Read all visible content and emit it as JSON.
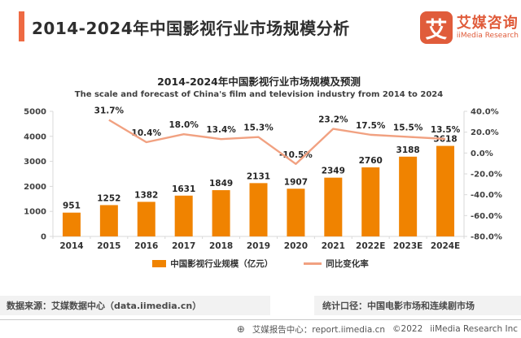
{
  "header": {
    "title": "2014-2024年中国影视行业市场规模分析",
    "logo": {
      "badge": "艾",
      "name_cn": "艾媒咨询",
      "name_en": "iiMedia Research"
    }
  },
  "chart_data": {
    "type": "bar",
    "title": "2014-2024年中国影视行业市场规模及预测",
    "subtitle": "The scale and forecast of China's film and television industry from 2014 to 2024",
    "categories": [
      "2014",
      "2015",
      "2016",
      "2017",
      "2018",
      "2019",
      "2020",
      "2021",
      "2022E",
      "2023E",
      "2024E"
    ],
    "series": [
      {
        "name": "中国影视行业规模（亿元）",
        "type": "bar",
        "color": "#F08300",
        "values": [
          951,
          1252,
          1382,
          1631,
          1849,
          2131,
          1907,
          2349,
          2760,
          3188,
          3618
        ]
      },
      {
        "name": "同比变化率",
        "type": "line",
        "color": "#F1A181",
        "values": [
          null,
          31.7,
          10.4,
          18.0,
          13.4,
          15.3,
          -10.5,
          23.2,
          17.5,
          15.5,
          13.5
        ],
        "point_labels": [
          "",
          "31.7%",
          "10.4%",
          "18.0%",
          "13.4%",
          "15.3%",
          "-10.5%",
          "23.2%",
          "17.5%",
          "15.5%",
          "13.5%"
        ]
      }
    ],
    "left_axis": {
      "min": 0,
      "max": 5000,
      "ticks": [
        {
          "value": 0,
          "label": "0"
        },
        {
          "value": 1000,
          "label": "1000"
        },
        {
          "value": 2000,
          "label": "2000"
        },
        {
          "value": 3000,
          "label": "3000"
        },
        {
          "value": 4000,
          "label": "4000"
        },
        {
          "value": 5000,
          "label": "5000"
        }
      ]
    },
    "right_axis": {
      "min": -80,
      "max": 40,
      "ticks": [
        {
          "value": 40,
          "label": "40.0%"
        },
        {
          "value": 20,
          "label": "20.0%"
        },
        {
          "value": 0,
          "label": "0.0%"
        },
        {
          "value": -20,
          "label": "-20.0%"
        },
        {
          "value": -40,
          "label": "-40.0%"
        },
        {
          "value": -60,
          "label": "-60.0%"
        },
        {
          "value": -80,
          "label": "-80.0%"
        }
      ]
    },
    "legend": [
      {
        "label": "中国影视行业规模（亿元）",
        "swatch": "bar",
        "color": "#F08300"
      },
      {
        "label": "同比变化率",
        "swatch": "line",
        "color": "#F1A181"
      }
    ],
    "grid": false,
    "legend_position": "bottom"
  },
  "source_bar": {
    "left": "数据来源：艾媒数据中心（data.iimedia.cn）",
    "right": "统计口径：中国电影市场和连续剧市场"
  },
  "footer": {
    "globe_icon": "⊕",
    "report_center": "艾媒报告中心：report.iimedia.cn",
    "copyright": "©2022",
    "company": "iiMedia Research Inc"
  }
}
